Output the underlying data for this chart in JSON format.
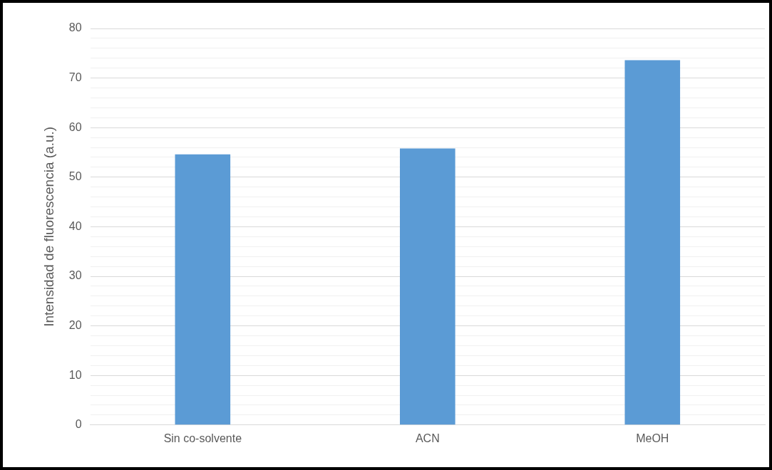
{
  "chart_data": {
    "type": "bar",
    "ylabel": "Intensidad de fluorescencia (a.u.)",
    "categories": [
      "Sin co-solvente",
      "ACN",
      "MeOH"
    ],
    "values": [
      54.6,
      55.8,
      73.6
    ],
    "color": "#5b9bd5",
    "ylim": [
      0,
      80
    ],
    "yticks": [
      0,
      {
        "value": 2,
        "label": null
      },
      {
        "value": 4,
        "label": null
      },
      {
        "value": 6,
        "label": null
      },
      {
        "value": 8,
        "label": null
      },
      10,
      {
        "value": 12,
        "label": null
      },
      {
        "value": 14,
        "label": null
      },
      {
        "value": 16,
        "label": null
      },
      {
        "value": 18,
        "label": null
      },
      20,
      {
        "value": 22,
        "label": null
      },
      {
        "value": 24,
        "label": null
      },
      {
        "value": 26,
        "label": null
      },
      {
        "value": 28,
        "label": null
      },
      30,
      {
        "value": 32,
        "label": null
      },
      {
        "value": 34,
        "label": null
      },
      {
        "value": 36,
        "label": null
      },
      {
        "value": 38,
        "label": null
      },
      40,
      {
        "value": 42,
        "label": null
      },
      {
        "value": 44,
        "label": null
      },
      {
        "value": 46,
        "label": null
      },
      {
        "value": 48,
        "label": null
      },
      50,
      {
        "value": 52,
        "label": null
      },
      {
        "value": 54,
        "label": null
      },
      {
        "value": 56,
        "label": null
      },
      {
        "value": 58,
        "label": null
      },
      60,
      {
        "value": 62,
        "label": null
      },
      {
        "value": 64,
        "label": null
      },
      {
        "value": 66,
        "label": null
      },
      {
        "value": 68,
        "label": null
      },
      70,
      {
        "value": 72,
        "label": null
      },
      {
        "value": 74,
        "label": null
      },
      {
        "value": 76,
        "label": null
      },
      {
        "value": 78,
        "label": null
      },
      80
    ],
    "grid": "y",
    "legend": false
  }
}
